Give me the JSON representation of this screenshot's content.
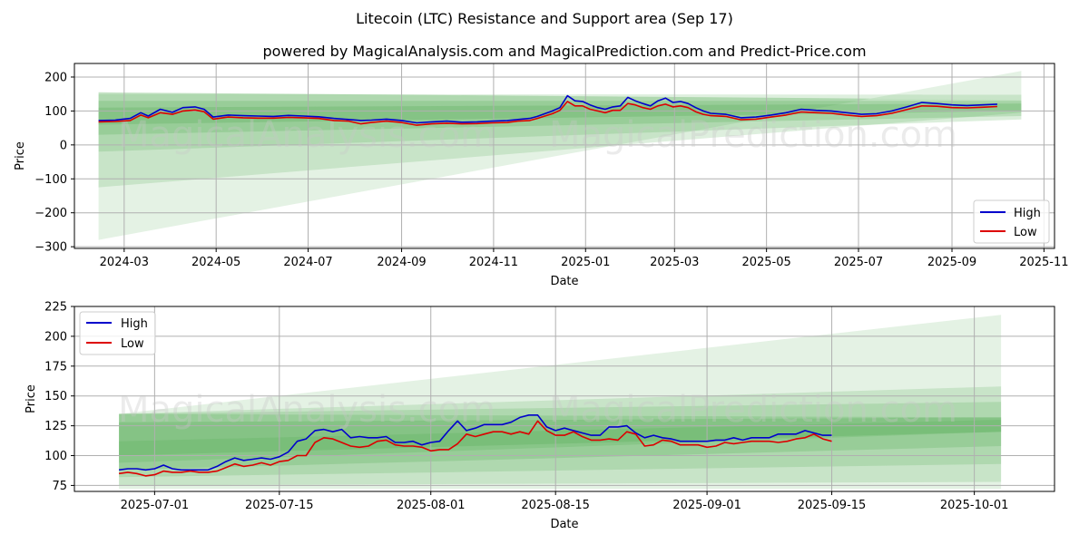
{
  "title": "Litecoin (LTC) Resistance and Support area (Sep 17)",
  "subtitle": "powered by MagicalAnalysis.com and MagicalPrediction.com and Predict-Price.com",
  "watermarks": [
    "MagicalAnalysis.com",
    "MagicalPrediction.com"
  ],
  "colors": {
    "high": "#0000cc",
    "low": "#dd0000",
    "band": "#4aa84a",
    "grid": "#b0b0b0"
  },
  "chart_data": [
    {
      "type": "line",
      "xlabel": "Date",
      "ylabel": "Price",
      "xticks": [
        "2024-03",
        "2024-05",
        "2024-07",
        "2024-09",
        "2024-11",
        "2025-01",
        "2025-03",
        "2025-05",
        "2025-07",
        "2025-09",
        "2025-11"
      ],
      "xtick_days": [
        -349,
        -288,
        -227,
        -165,
        -104,
        -43,
        16,
        77,
        138,
        200,
        261
      ],
      "xlim_days": [
        -382,
        268
      ],
      "yticks": [
        200,
        100,
        0,
        -100,
        -200,
        -300
      ],
      "ylim": [
        -305,
        240
      ],
      "legend": [
        "High",
        "Low"
      ],
      "legend_loc": "lower right",
      "bands": [
        {
          "x": [
            -366,
            246
          ],
          "top": [
            155,
            133
          ],
          "bottom": [
            -280,
            218
          ],
          "opacity": 0.15
        },
        {
          "x": [
            -366,
            246
          ],
          "top": [
            150,
            148
          ],
          "bottom": [
            -125,
            95
          ],
          "opacity": 0.18
        },
        {
          "x": [
            -366,
            246
          ],
          "top": [
            155,
            133
          ],
          "bottom": [
            -20,
            75
          ],
          "opacity": 0.2
        },
        {
          "x": [
            -366,
            246
          ],
          "top": [
            130,
            130
          ],
          "bottom": [
            30,
            85
          ],
          "opacity": 0.22
        },
        {
          "x": [
            -366,
            246
          ],
          "top": [
            110,
            122
          ],
          "bottom": [
            60,
            100
          ],
          "opacity": 0.25
        }
      ],
      "series": [
        {
          "name": "High",
          "x": [
            -366,
            -355,
            -345,
            -338,
            -333,
            -325,
            -317,
            -310,
            -302,
            -296,
            -290,
            -280,
            -270,
            -260,
            -250,
            -240,
            -230,
            -220,
            -210,
            -200,
            -192,
            -185,
            -175,
            -165,
            -155,
            -145,
            -135,
            -125,
            -115,
            -105,
            -95,
            -88,
            -80,
            -75,
            -70,
            -65,
            -60,
            -55,
            -50,
            -45,
            -40,
            -35,
            -30,
            -25,
            -20,
            -15,
            -10,
            -5,
            0,
            5,
            10,
            15,
            20,
            25,
            30,
            35,
            40,
            50,
            60,
            70,
            80,
            90,
            100,
            110,
            120,
            130,
            140,
            150,
            160,
            170,
            180,
            190,
            200,
            210,
            220,
            230
          ],
          "y": [
            72,
            73,
            78,
            95,
            85,
            105,
            96,
            110,
            112,
            105,
            82,
            88,
            86,
            85,
            84,
            87,
            85,
            83,
            78,
            75,
            72,
            73,
            76,
            72,
            65,
            68,
            70,
            67,
            68,
            70,
            72,
            75,
            78,
            84,
            92,
            100,
            110,
            145,
            130,
            128,
            118,
            110,
            105,
            112,
            115,
            140,
            130,
            122,
            115,
            130,
            138,
            125,
            128,
            122,
            110,
            100,
            93,
            90,
            80,
            82,
            88,
            95,
            105,
            102,
            100,
            95,
            90,
            92,
            100,
            112,
            125,
            122,
            118,
            116,
            118,
            120
          ]
        },
        {
          "name": "Low",
          "x": [
            -366,
            -355,
            -345,
            -338,
            -333,
            -325,
            -317,
            -310,
            -302,
            -296,
            -290,
            -280,
            -270,
            -260,
            -250,
            -240,
            -230,
            -220,
            -210,
            -200,
            -192,
            -185,
            -175,
            -165,
            -155,
            -145,
            -135,
            -125,
            -115,
            -105,
            -95,
            -88,
            -80,
            -75,
            -70,
            -65,
            -60,
            -55,
            -50,
            -45,
            -40,
            -35,
            -30,
            -25,
            -20,
            -15,
            -10,
            -5,
            0,
            5,
            10,
            15,
            20,
            25,
            30,
            35,
            40,
            50,
            60,
            70,
            80,
            90,
            100,
            110,
            120,
            130,
            140,
            150,
            160,
            170,
            180,
            190,
            200,
            210,
            220,
            230
          ],
          "y": [
            68,
            69,
            72,
            88,
            80,
            95,
            90,
            100,
            103,
            98,
            76,
            82,
            80,
            79,
            79,
            81,
            80,
            78,
            72,
            70,
            62,
            66,
            70,
            66,
            58,
            62,
            64,
            62,
            63,
            65,
            66,
            70,
            72,
            78,
            85,
            92,
            102,
            128,
            115,
            115,
            105,
            100,
            95,
            102,
            102,
            122,
            118,
            110,
            105,
            115,
            120,
            112,
            115,
            110,
            98,
            90,
            86,
            84,
            74,
            76,
            82,
            88,
            97,
            95,
            93,
            88,
            84,
            86,
            93,
            104,
            115,
            114,
            110,
            109,
            111,
            113
          ]
        }
      ]
    },
    {
      "type": "line",
      "xlabel": "Date",
      "ylabel": "Price",
      "xticks": [
        "2025-07-01",
        "2025-07-15",
        "2025-08-01",
        "2025-08-15",
        "2025-09-01",
        "2025-09-15",
        "2025-10-01"
      ],
      "xtick_days": [
        0,
        14,
        31,
        45,
        62,
        76,
        92
      ],
      "xlim_days": [
        -9,
        101
      ],
      "yticks": [
        225,
        200,
        175,
        150,
        125,
        100,
        75
      ],
      "ylim": [
        70,
        225
      ],
      "legend": [
        "High",
        "Low"
      ],
      "legend_loc": "upper left",
      "bands": [
        {
          "x": [
            -4,
            95
          ],
          "top": [
            135,
            218
          ],
          "bottom": [
            72,
            72
          ],
          "opacity": 0.15
        },
        {
          "x": [
            -4,
            95
          ],
          "top": [
            135,
            158
          ],
          "bottom": [
            75,
            78
          ],
          "opacity": 0.18
        },
        {
          "x": [
            -4,
            95
          ],
          "top": [
            135,
            145
          ],
          "bottom": [
            82,
            93
          ],
          "opacity": 0.2
        },
        {
          "x": [
            -4,
            95
          ],
          "top": [
            135,
            132
          ],
          "bottom": [
            88,
            108
          ],
          "opacity": 0.22
        },
        {
          "x": [
            -4,
            95
          ],
          "top": [
            128,
            132
          ],
          "bottom": [
            100,
            120
          ],
          "opacity": 0.25
        },
        {
          "x": [
            -4,
            95
          ],
          "top": [
            112,
            130
          ],
          "bottom": [
            94,
            120
          ],
          "opacity": 0.2
        }
      ],
      "series": [
        {
          "name": "High",
          "x": [
            -4,
            -3,
            -2,
            -1,
            0,
            1,
            2,
            3,
            4,
            5,
            6,
            7,
            8,
            9,
            10,
            11,
            12,
            13,
            14,
            15,
            16,
            17,
            18,
            19,
            20,
            21,
            22,
            23,
            24,
            25,
            26,
            27,
            28,
            29,
            30,
            31,
            32,
            33,
            34,
            35,
            36,
            37,
            38,
            39,
            40,
            41,
            42,
            43,
            44,
            45,
            46,
            47,
            48,
            49,
            50,
            51,
            52,
            53,
            54,
            55,
            56,
            57,
            58,
            59,
            60,
            61,
            62,
            63,
            64,
            65,
            66,
            67,
            68,
            69,
            70,
            71,
            72,
            73,
            74,
            75,
            76
          ],
          "y": [
            88,
            89,
            89,
            88,
            89,
            92,
            89,
            88,
            88,
            88,
            88,
            91,
            95,
            98,
            96,
            97,
            98,
            97,
            99,
            103,
            112,
            114,
            121,
            122,
            120,
            122,
            115,
            116,
            115,
            115,
            116,
            111,
            111,
            112,
            109,
            111,
            112,
            121,
            129,
            121,
            123,
            126,
            126,
            126,
            128,
            132,
            134,
            134,
            124,
            121,
            123,
            121,
            119,
            117,
            117,
            124,
            124,
            125,
            119,
            115,
            117,
            115,
            114,
            112,
            112,
            112,
            112,
            113,
            113,
            115,
            113,
            115,
            115,
            115,
            118,
            118,
            118,
            121,
            119,
            117,
            117
          ]
        },
        {
          "name": "Low",
          "x": [
            -4,
            -3,
            -2,
            -1,
            0,
            1,
            2,
            3,
            4,
            5,
            6,
            7,
            8,
            9,
            10,
            11,
            12,
            13,
            14,
            15,
            16,
            17,
            18,
            19,
            20,
            21,
            22,
            23,
            24,
            25,
            26,
            27,
            28,
            29,
            30,
            31,
            32,
            33,
            34,
            35,
            36,
            37,
            38,
            39,
            40,
            41,
            42,
            43,
            44,
            45,
            46,
            47,
            48,
            49,
            50,
            51,
            52,
            53,
            54,
            55,
            56,
            57,
            58,
            59,
            60,
            61,
            62,
            63,
            64,
            65,
            66,
            67,
            68,
            69,
            70,
            71,
            72,
            73,
            74,
            75,
            76
          ],
          "y": [
            85,
            86,
            85,
            83,
            84,
            87,
            86,
            86,
            87,
            86,
            86,
            87,
            90,
            93,
            91,
            92,
            94,
            92,
            95,
            96,
            100,
            100,
            111,
            115,
            114,
            111,
            108,
            107,
            108,
            112,
            113,
            109,
            108,
            108,
            107,
            104,
            105,
            105,
            110,
            118,
            116,
            118,
            120,
            120,
            118,
            120,
            118,
            129,
            121,
            117,
            117,
            120,
            116,
            113,
            113,
            114,
            113,
            120,
            118,
            108,
            109,
            113,
            112,
            109,
            109,
            109,
            107,
            108,
            111,
            110,
            111,
            112,
            112,
            112,
            111,
            112,
            114,
            115,
            118,
            114,
            112
          ]
        }
      ]
    }
  ]
}
